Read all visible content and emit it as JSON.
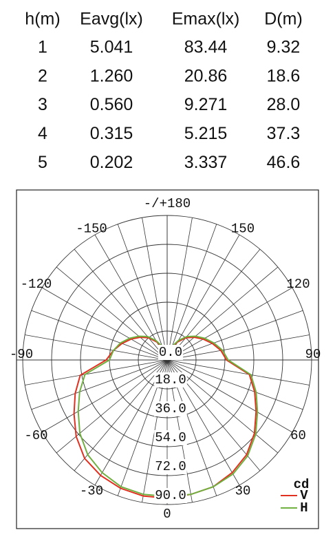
{
  "table": {
    "columns": [
      "h(m)",
      "Eavg(lx)",
      "Emax(lx)",
      "D(m)"
    ],
    "rows": [
      [
        "1",
        "5.041",
        "83.44",
        "9.32"
      ],
      [
        "2",
        "1.260",
        "20.86",
        "18.6"
      ],
      [
        "3",
        "0.560",
        "9.271",
        "28.0"
      ],
      [
        "4",
        "0.315",
        "5.215",
        "37.3"
      ],
      [
        "5",
        "0.202",
        "3.337",
        "46.6"
      ]
    ]
  },
  "chart_data": {
    "type": "polar",
    "x": [
      -180,
      -170,
      -160,
      -150,
      -140,
      -130,
      -120,
      -110,
      -100,
      -90,
      -80,
      -70,
      -60,
      -50,
      -40,
      -30,
      -20,
      -10,
      0,
      10,
      20,
      30,
      40,
      50,
      60,
      70,
      80,
      90,
      100,
      110,
      120,
      130,
      140,
      150,
      160,
      170,
      180
    ],
    "series": [
      {
        "name": "V",
        "color": "#e03020",
        "values": [
          0,
          3,
          8,
          13,
          18,
          22,
          26,
          30,
          34,
          38,
          55,
          61,
          67,
          74,
          80,
          83,
          85,
          86,
          86,
          85,
          84,
          81,
          77,
          71,
          64,
          58,
          52,
          37,
          34,
          30,
          26,
          22,
          18,
          13,
          8,
          3,
          0
        ]
      },
      {
        "name": "H",
        "color": "#70b040",
        "values": [
          0,
          4,
          9,
          14,
          19,
          23,
          27,
          31,
          34,
          36,
          52,
          58,
          64,
          71,
          77,
          81,
          84,
          85,
          85,
          85,
          84,
          82,
          78,
          72,
          65,
          59,
          53,
          38,
          35,
          31,
          27,
          23,
          19,
          14,
          9,
          4,
          0
        ]
      }
    ],
    "xlim": [
      -180,
      180
    ],
    "xticks": [
      0,
      30,
      60,
      90,
      120,
      150,
      {
        "value": 180,
        "label": "-/+180"
      },
      -150,
      -120,
      -90,
      -60,
      -30
    ],
    "ylim": [
      0,
      90
    ],
    "yticks": [
      {
        "value": 0,
        "label": "0.0"
      },
      {
        "value": 18,
        "label": "18.0"
      },
      {
        "value": 36,
        "label": "36.0"
      },
      {
        "value": 54,
        "label": "54.0"
      },
      {
        "value": 72,
        "label": "72.0"
      },
      {
        "value": 90,
        "label": "90.0"
      }
    ],
    "legend_title": "cd",
    "legend": "lower right"
  }
}
